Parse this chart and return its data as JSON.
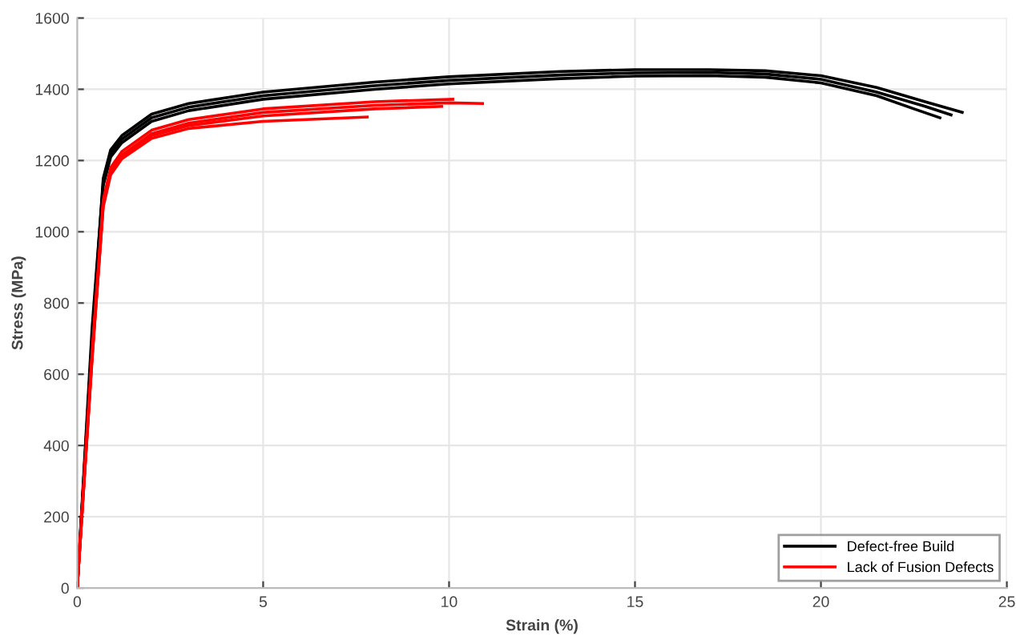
{
  "chart_data": {
    "type": "line",
    "xlabel": "Strain (%)",
    "ylabel": "Stress (MPa)",
    "xlim": [
      0,
      25
    ],
    "ylim": [
      0,
      1600
    ],
    "xticks": [
      0,
      5,
      10,
      15,
      20,
      25
    ],
    "yticks": [
      0,
      200,
      400,
      600,
      800,
      1000,
      1200,
      1400,
      1600
    ],
    "grid": true,
    "legend": "bottom right",
    "line_style": "solid",
    "series": [
      {
        "name": "Defect-free Build",
        "color": "#000000",
        "x": [
          0,
          0.4,
          0.7,
          0.9,
          1.2,
          2,
          3,
          5,
          8,
          10,
          13,
          15,
          17,
          18.5,
          20,
          21.5,
          22.8,
          23.8
        ],
        "values": [
          0,
          700,
          1150,
          1230,
          1270,
          1330,
          1360,
          1392,
          1420,
          1435,
          1450,
          1455,
          1455,
          1452,
          1438,
          1405,
          1365,
          1335
        ]
      },
      {
        "color": "#000000",
        "x": [
          0,
          0.4,
          0.7,
          0.9,
          1.2,
          2,
          3,
          5,
          8,
          10,
          13,
          15,
          17,
          18.5,
          20,
          21.5,
          22.5,
          23.2
        ],
        "values": [
          0,
          700,
          1130,
          1210,
          1250,
          1310,
          1340,
          1372,
          1400,
          1415,
          1430,
          1437,
          1438,
          1434,
          1418,
          1382,
          1345,
          1320
        ]
      },
      {
        "color": "#000000",
        "x": [
          0,
          0.4,
          0.7,
          0.9,
          1.2,
          2,
          3,
          5,
          8,
          10,
          13,
          15,
          17,
          18.5,
          20,
          21.5,
          22.8,
          23.5
        ],
        "values": [
          0,
          730,
          1140,
          1220,
          1260,
          1320,
          1350,
          1382,
          1410,
          1425,
          1440,
          1446,
          1447,
          1443,
          1428,
          1392,
          1352,
          1328
        ]
      },
      {
        "name": "Lack of Fusion Defects",
        "color": "#ff0000",
        "x": [
          0,
          0.4,
          0.7,
          0.9,
          1.2,
          2,
          3,
          5,
          8,
          10,
          10.9
        ],
        "values": [
          0,
          650,
          1080,
          1170,
          1215,
          1275,
          1305,
          1335,
          1355,
          1362,
          1360
        ]
      },
      {
        "color": "#ff0000",
        "x": [
          0,
          0.4,
          0.7,
          0.9,
          1.2,
          2,
          3,
          5,
          8,
          10.1
        ],
        "values": [
          0,
          660,
          1090,
          1180,
          1225,
          1285,
          1315,
          1345,
          1365,
          1372
        ]
      },
      {
        "color": "#ff0000",
        "x": [
          0,
          0.4,
          0.7,
          0.9,
          1.2,
          2,
          3,
          5,
          7.8
        ],
        "values": [
          0,
          640,
          1070,
          1160,
          1205,
          1262,
          1290,
          1310,
          1322
        ]
      },
      {
        "color": "#ff0000",
        "x": [
          0,
          0.4,
          0.7,
          0.9,
          1.2,
          2,
          3,
          5,
          8,
          9.8
        ],
        "values": [
          0,
          650,
          1075,
          1165,
          1210,
          1270,
          1298,
          1325,
          1345,
          1352
        ]
      }
    ]
  }
}
